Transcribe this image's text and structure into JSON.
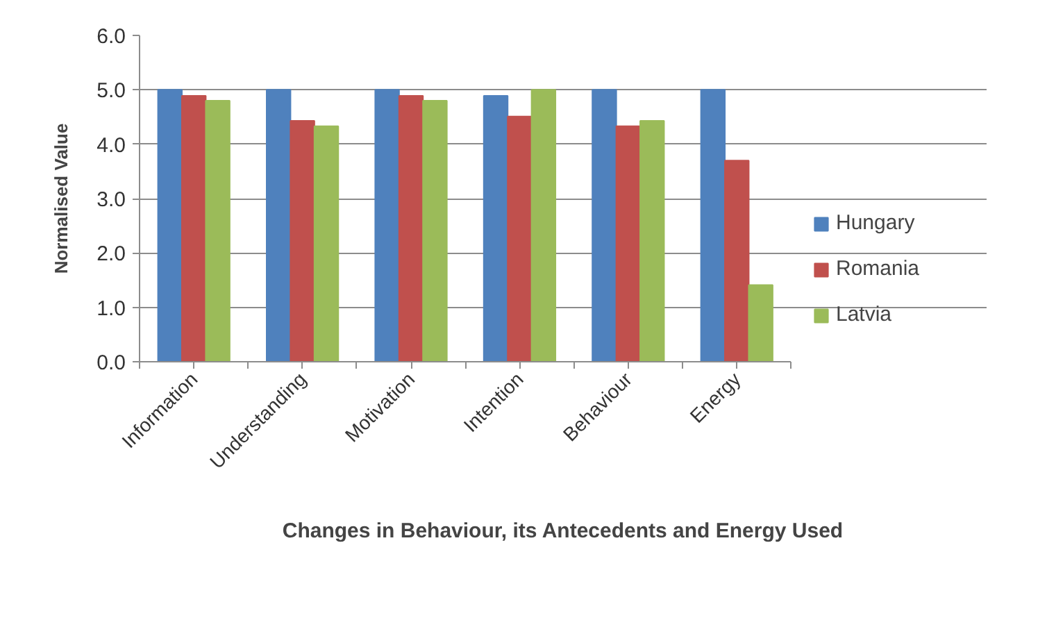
{
  "chart_data": {
    "type": "bar",
    "xlabel": "Changes in Behaviour, its Antecedents and Energy Used",
    "ylabel": "Normalised Value",
    "categories": [
      "Information",
      "Understanding",
      "Motivation",
      "Intention",
      "Behaviour",
      "Energy"
    ],
    "series": [
      {
        "name": "Hungary",
        "color": "#4f81bd",
        "values": [
          5.0,
          5.0,
          5.0,
          4.89,
          5.0,
          5.0
        ]
      },
      {
        "name": "Romania",
        "color": "#c0504d",
        "values": [
          4.89,
          4.43,
          4.89,
          4.51,
          4.33,
          3.7
        ]
      },
      {
        "name": "Latvia",
        "color": "#9bbb59",
        "values": [
          4.8,
          4.33,
          4.8,
          5.0,
          4.43,
          1.41
        ]
      }
    ],
    "ylim": [
      0,
      6
    ],
    "yticks": [
      {
        "value": 0,
        "label": "0.0"
      },
      {
        "value": 1,
        "label": "1.0"
      },
      {
        "value": 2,
        "label": "2.0"
      },
      {
        "value": 3,
        "label": "3.0"
      },
      {
        "value": 4,
        "label": "4.0"
      },
      {
        "value": 5,
        "label": "5.0"
      },
      {
        "value": 6,
        "label": "6.0"
      }
    ],
    "grid": "y",
    "legend": "right"
  }
}
